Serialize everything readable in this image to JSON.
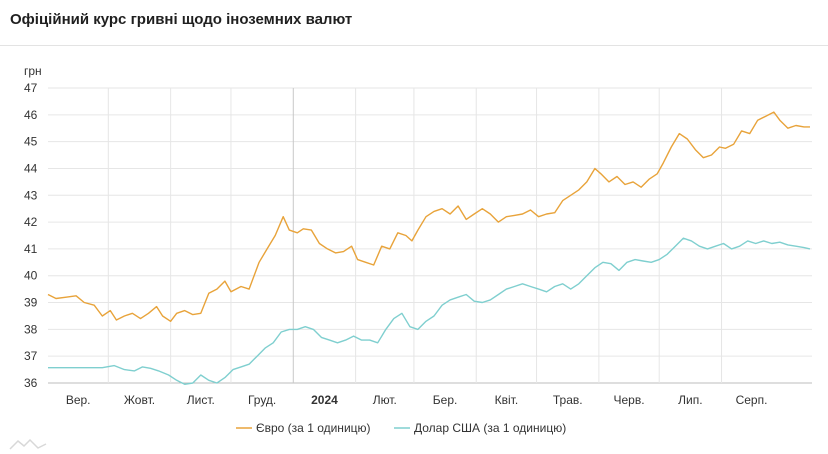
{
  "header": {
    "title": "Офіційний курс гривні щодо іноземних валют"
  },
  "chart_data": {
    "type": "line",
    "title": "Офіційний курс гривні щодо іноземних валют",
    "ylabel": "грн",
    "xlabel": "",
    "ylim": [
      36,
      47
    ],
    "yticks": [
      36,
      37,
      38,
      39,
      40,
      41,
      42,
      43,
      44,
      45,
      46,
      47
    ],
    "xlim": [
      "2023-09-01",
      "2024-09-15"
    ],
    "grid": true,
    "legend_position": "bottom",
    "month_ticks": [
      {
        "label": "Вер.",
        "date": "2023-09-01"
      },
      {
        "label": "Жовт.",
        "date": "2023-10-01"
      },
      {
        "label": "Лист.",
        "date": "2023-11-01"
      },
      {
        "label": "Груд.",
        "date": "2023-12-01"
      },
      {
        "label": "2024",
        "date": "2024-01-01",
        "bold": true
      },
      {
        "label": "Лют.",
        "date": "2024-02-01"
      },
      {
        "label": "Бер.",
        "date": "2024-03-01"
      },
      {
        "label": "Квіт.",
        "date": "2024-04-01"
      },
      {
        "label": "Трав.",
        "date": "2024-05-01"
      },
      {
        "label": "Черв.",
        "date": "2024-06-01"
      },
      {
        "label": "Лип.",
        "date": "2024-07-01"
      },
      {
        "label": "Серп.",
        "date": "2024-08-01"
      }
    ],
    "series": [
      {
        "name": "Євро (за 1 одиницю)",
        "color": "#e8a33a",
        "points": [
          [
            "2023-09-01",
            39.3
          ],
          [
            "2023-09-05",
            39.15
          ],
          [
            "2023-09-10",
            39.2
          ],
          [
            "2023-09-15",
            39.25
          ],
          [
            "2023-09-19",
            39.0
          ],
          [
            "2023-09-24",
            38.9
          ],
          [
            "2023-09-28",
            38.5
          ],
          [
            "2023-10-02",
            38.7
          ],
          [
            "2023-10-05",
            38.35
          ],
          [
            "2023-10-09",
            38.5
          ],
          [
            "2023-10-13",
            38.6
          ],
          [
            "2023-10-17",
            38.4
          ],
          [
            "2023-10-21",
            38.6
          ],
          [
            "2023-10-25",
            38.85
          ],
          [
            "2023-10-28",
            38.5
          ],
          [
            "2023-11-01",
            38.3
          ],
          [
            "2023-11-04",
            38.6
          ],
          [
            "2023-11-08",
            38.7
          ],
          [
            "2023-11-12",
            38.55
          ],
          [
            "2023-11-16",
            38.6
          ],
          [
            "2023-11-20",
            39.35
          ],
          [
            "2023-11-24",
            39.5
          ],
          [
            "2023-11-28",
            39.8
          ],
          [
            "2023-12-01",
            39.4
          ],
          [
            "2023-12-06",
            39.6
          ],
          [
            "2023-12-10",
            39.5
          ],
          [
            "2023-12-15",
            40.5
          ],
          [
            "2023-12-19",
            41.0
          ],
          [
            "2023-12-23",
            41.5
          ],
          [
            "2023-12-27",
            42.2
          ],
          [
            "2023-12-30",
            41.7
          ],
          [
            "2024-01-03",
            41.6
          ],
          [
            "2024-01-06",
            41.75
          ],
          [
            "2024-01-10",
            41.7
          ],
          [
            "2024-01-14",
            41.2
          ],
          [
            "2024-01-18",
            41.0
          ],
          [
            "2024-01-22",
            40.85
          ],
          [
            "2024-01-26",
            40.9
          ],
          [
            "2024-01-30",
            41.1
          ],
          [
            "2024-02-02",
            40.6
          ],
          [
            "2024-02-06",
            40.5
          ],
          [
            "2024-02-10",
            40.4
          ],
          [
            "2024-02-14",
            41.1
          ],
          [
            "2024-02-18",
            41.0
          ],
          [
            "2024-02-22",
            41.6
          ],
          [
            "2024-02-26",
            41.5
          ],
          [
            "2024-02-29",
            41.3
          ],
          [
            "2024-03-03",
            41.7
          ],
          [
            "2024-03-07",
            42.2
          ],
          [
            "2024-03-11",
            42.4
          ],
          [
            "2024-03-15",
            42.5
          ],
          [
            "2024-03-19",
            42.3
          ],
          [
            "2024-03-23",
            42.6
          ],
          [
            "2024-03-27",
            42.1
          ],
          [
            "2024-03-31",
            42.3
          ],
          [
            "2024-04-04",
            42.5
          ],
          [
            "2024-04-08",
            42.3
          ],
          [
            "2024-04-12",
            42.0
          ],
          [
            "2024-04-16",
            42.2
          ],
          [
            "2024-04-20",
            42.25
          ],
          [
            "2024-04-24",
            42.3
          ],
          [
            "2024-04-28",
            42.45
          ],
          [
            "2024-05-02",
            42.2
          ],
          [
            "2024-05-06",
            42.3
          ],
          [
            "2024-05-10",
            42.35
          ],
          [
            "2024-05-14",
            42.8
          ],
          [
            "2024-05-18",
            43.0
          ],
          [
            "2024-05-22",
            43.2
          ],
          [
            "2024-05-26",
            43.5
          ],
          [
            "2024-05-30",
            44.0
          ],
          [
            "2024-06-02",
            43.8
          ],
          [
            "2024-06-06",
            43.5
          ],
          [
            "2024-06-10",
            43.7
          ],
          [
            "2024-06-14",
            43.4
          ],
          [
            "2024-06-18",
            43.5
          ],
          [
            "2024-06-22",
            43.3
          ],
          [
            "2024-06-26",
            43.6
          ],
          [
            "2024-06-30",
            43.8
          ],
          [
            "2024-07-03",
            44.2
          ],
          [
            "2024-07-07",
            44.8
          ],
          [
            "2024-07-11",
            45.3
          ],
          [
            "2024-07-15",
            45.1
          ],
          [
            "2024-07-19",
            44.7
          ],
          [
            "2024-07-23",
            44.4
          ],
          [
            "2024-07-27",
            44.5
          ],
          [
            "2024-07-31",
            44.8
          ],
          [
            "2024-08-03",
            44.75
          ],
          [
            "2024-08-07",
            44.9
          ],
          [
            "2024-08-11",
            45.4
          ],
          [
            "2024-08-15",
            45.3
          ],
          [
            "2024-08-19",
            45.8
          ],
          [
            "2024-08-23",
            45.95
          ],
          [
            "2024-08-27",
            46.1
          ],
          [
            "2024-08-30",
            45.8
          ],
          [
            "2024-09-03",
            45.5
          ],
          [
            "2024-09-07",
            45.6
          ],
          [
            "2024-09-11",
            45.55
          ],
          [
            "2024-09-14",
            45.55
          ]
        ]
      },
      {
        "name": "Долар США (за 1 одиницю)",
        "color": "#7fcfcf",
        "points": [
          [
            "2023-09-01",
            36.57
          ],
          [
            "2023-09-10",
            36.57
          ],
          [
            "2023-09-20",
            36.57
          ],
          [
            "2023-09-28",
            36.57
          ],
          [
            "2023-10-04",
            36.65
          ],
          [
            "2023-10-09",
            36.5
          ],
          [
            "2023-10-14",
            36.45
          ],
          [
            "2023-10-18",
            36.6
          ],
          [
            "2023-10-22",
            36.55
          ],
          [
            "2023-10-26",
            36.45
          ],
          [
            "2023-10-31",
            36.3
          ],
          [
            "2023-11-04",
            36.1
          ],
          [
            "2023-11-08",
            35.95
          ],
          [
            "2023-11-12",
            36.0
          ],
          [
            "2023-11-16",
            36.3
          ],
          [
            "2023-11-20",
            36.1
          ],
          [
            "2023-11-24",
            36.0
          ],
          [
            "2023-11-28",
            36.2
          ],
          [
            "2023-12-02",
            36.5
          ],
          [
            "2023-12-06",
            36.6
          ],
          [
            "2023-12-10",
            36.7
          ],
          [
            "2023-12-14",
            37.0
          ],
          [
            "2023-12-18",
            37.3
          ],
          [
            "2023-12-22",
            37.5
          ],
          [
            "2023-12-26",
            37.9
          ],
          [
            "2023-12-30",
            38.0
          ],
          [
            "2024-01-03",
            38.0
          ],
          [
            "2024-01-07",
            38.1
          ],
          [
            "2024-01-11",
            38.0
          ],
          [
            "2024-01-15",
            37.7
          ],
          [
            "2024-01-19",
            37.6
          ],
          [
            "2024-01-23",
            37.5
          ],
          [
            "2024-01-27",
            37.6
          ],
          [
            "2024-01-31",
            37.75
          ],
          [
            "2024-02-04",
            37.6
          ],
          [
            "2024-02-08",
            37.6
          ],
          [
            "2024-02-12",
            37.5
          ],
          [
            "2024-02-16",
            38.0
          ],
          [
            "2024-02-20",
            38.4
          ],
          [
            "2024-02-24",
            38.6
          ],
          [
            "2024-02-28",
            38.1
          ],
          [
            "2024-03-03",
            38.0
          ],
          [
            "2024-03-07",
            38.3
          ],
          [
            "2024-03-11",
            38.5
          ],
          [
            "2024-03-15",
            38.9
          ],
          [
            "2024-03-19",
            39.1
          ],
          [
            "2024-03-23",
            39.2
          ],
          [
            "2024-03-27",
            39.3
          ],
          [
            "2024-03-31",
            39.05
          ],
          [
            "2024-04-04",
            39.0
          ],
          [
            "2024-04-08",
            39.1
          ],
          [
            "2024-04-12",
            39.3
          ],
          [
            "2024-04-16",
            39.5
          ],
          [
            "2024-04-20",
            39.6
          ],
          [
            "2024-04-24",
            39.7
          ],
          [
            "2024-04-28",
            39.6
          ],
          [
            "2024-05-02",
            39.5
          ],
          [
            "2024-05-06",
            39.4
          ],
          [
            "2024-05-10",
            39.6
          ],
          [
            "2024-05-14",
            39.7
          ],
          [
            "2024-05-18",
            39.5
          ],
          [
            "2024-05-22",
            39.7
          ],
          [
            "2024-05-26",
            40.0
          ],
          [
            "2024-05-30",
            40.3
          ],
          [
            "2024-06-03",
            40.5
          ],
          [
            "2024-06-07",
            40.45
          ],
          [
            "2024-06-11",
            40.2
          ],
          [
            "2024-06-15",
            40.5
          ],
          [
            "2024-06-19",
            40.6
          ],
          [
            "2024-06-23",
            40.55
          ],
          [
            "2024-06-27",
            40.5
          ],
          [
            "2024-07-01",
            40.6
          ],
          [
            "2024-07-05",
            40.8
          ],
          [
            "2024-07-09",
            41.1
          ],
          [
            "2024-07-13",
            41.4
          ],
          [
            "2024-07-17",
            41.3
          ],
          [
            "2024-07-21",
            41.1
          ],
          [
            "2024-07-25",
            41.0
          ],
          [
            "2024-07-29",
            41.1
          ],
          [
            "2024-08-02",
            41.2
          ],
          [
            "2024-08-06",
            41.0
          ],
          [
            "2024-08-10",
            41.1
          ],
          [
            "2024-08-14",
            41.3
          ],
          [
            "2024-08-18",
            41.2
          ],
          [
            "2024-08-22",
            41.3
          ],
          [
            "2024-08-26",
            41.2
          ],
          [
            "2024-08-30",
            41.25
          ],
          [
            "2024-09-03",
            41.15
          ],
          [
            "2024-09-07",
            41.1
          ],
          [
            "2024-09-11",
            41.05
          ],
          [
            "2024-09-14",
            41.0
          ]
        ]
      }
    ]
  }
}
